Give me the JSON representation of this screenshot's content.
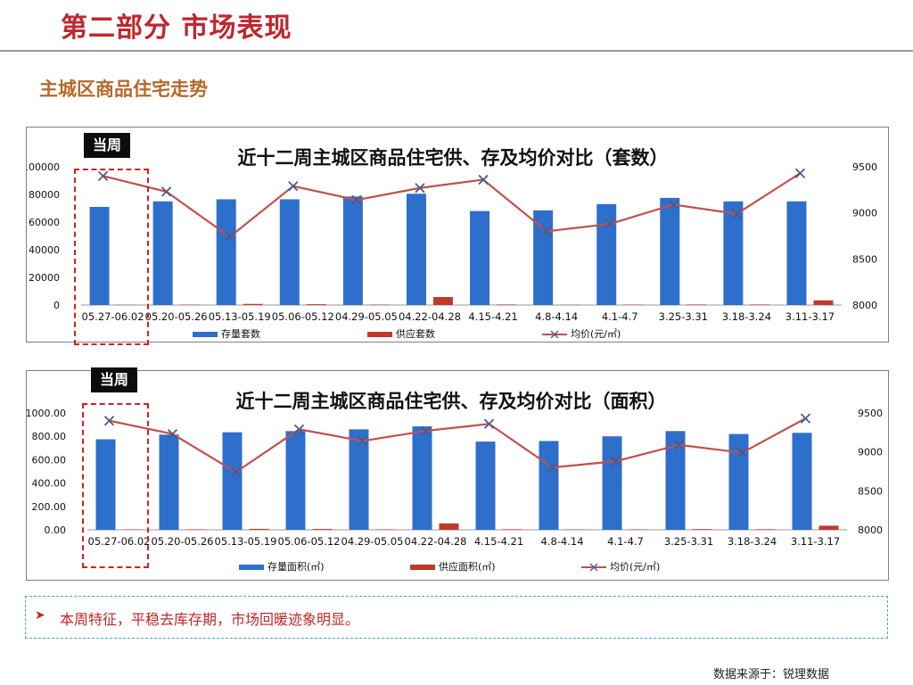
{
  "header": {
    "title": "第二部分 市场表现"
  },
  "section": {
    "title": "主城区商品住宅走势"
  },
  "badges": {
    "current_week": "当周"
  },
  "note": {
    "text": "本周特征，平稳去库存期，市场回暖迹象明显。"
  },
  "source": {
    "text": "数据来源于：锐理数据"
  },
  "colors": {
    "inventory": "#2f6fcc",
    "supply": "#c0392b",
    "price": "#c0504d",
    "price_marker": "#4a5a8a",
    "accent": "#c0262d"
  },
  "chart_data": [
    {
      "type": "bar",
      "title": "近十二周主城区商品住宅供、存及均价对比（套数）",
      "categories": [
        "05.27-06.02",
        "05.20-05.26",
        "05.13-05.19",
        "05.06-05.12",
        "04.29-05.05",
        "04.22-04.28",
        "4.15-4.21",
        "4.8-4.14",
        "4.1-4.7",
        "3.25-3.31",
        "3.18-3.24",
        "3.11-3.17"
      ],
      "series": [
        {
          "name": "存量套数",
          "axis": "left",
          "kind": "bar",
          "values": [
            71000,
            75000,
            76500,
            76500,
            78500,
            80500,
            68000,
            68500,
            73000,
            77500,
            75000,
            75000
          ]
        },
        {
          "name": "供应套数",
          "axis": "left",
          "kind": "bar",
          "values": [
            200,
            300,
            800,
            600,
            300,
            5800,
            400,
            200,
            300,
            400,
            400,
            3400
          ]
        },
        {
          "name": "均价(元/㎡)",
          "axis": "right",
          "kind": "line",
          "values": [
            9400,
            9230,
            8740,
            9290,
            9140,
            9270,
            9360,
            8800,
            8880,
            9090,
            8990,
            9430
          ]
        }
      ],
      "y_left": {
        "min": 0,
        "max": 100000,
        "ticks": [
          "0",
          "20000",
          "40000",
          "60000",
          "80000",
          "100000"
        ]
      },
      "y_right": {
        "min": 8000,
        "max": 9500,
        "ticks": [
          "8000",
          "8500",
          "9000",
          "9500"
        ]
      },
      "legend": "bottom",
      "grid": false
    },
    {
      "type": "bar",
      "title": "近十二周主城区商品住宅供、存及均价对比（面积）",
      "categories": [
        "05.27-06.02",
        "05.20-05.26",
        "05.13-05.19",
        "05.06-05.12",
        "04.29-05.05",
        "04.22-04.28",
        "4.15-4.21",
        "4.8-4.14",
        "4.1-4.7",
        "3.25-3.31",
        "3.18-3.24",
        "3.11-3.17"
      ],
      "series": [
        {
          "name": "存量面积(㎡)",
          "axis": "left",
          "kind": "bar",
          "values": [
            775,
            815,
            835,
            845,
            860,
            885,
            755,
            760,
            800,
            845,
            820,
            830
          ]
        },
        {
          "name": "供应面积(㎡)",
          "axis": "left",
          "kind": "bar",
          "values": [
            3,
            4,
            8,
            7,
            4,
            55,
            5,
            3,
            4,
            6,
            5,
            35
          ]
        },
        {
          "name": "均价(元/㎡)",
          "axis": "right",
          "kind": "line",
          "values": [
            9400,
            9230,
            8740,
            9290,
            9140,
            9270,
            9360,
            8800,
            8880,
            9090,
            8990,
            9430
          ]
        }
      ],
      "y_left": {
        "min": 0,
        "max": 1000,
        "ticks": [
          "0.00",
          "200.00",
          "400.00",
          "600.00",
          "800.00",
          "1000.00"
        ]
      },
      "y_right": {
        "min": 8000,
        "max": 9500,
        "ticks": [
          "8000",
          "8500",
          "9000",
          "9500"
        ]
      },
      "legend": "bottom",
      "grid": false
    }
  ]
}
